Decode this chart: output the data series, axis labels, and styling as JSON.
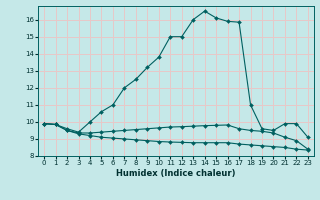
{
  "xlabel": "Humidex (Indice chaleur)",
  "xlim": [
    -0.5,
    23.5
  ],
  "ylim": [
    8,
    16.8
  ],
  "yticks": [
    8,
    9,
    10,
    11,
    12,
    13,
    14,
    15,
    16
  ],
  "xticks": [
    0,
    1,
    2,
    3,
    4,
    5,
    6,
    7,
    8,
    9,
    10,
    11,
    12,
    13,
    14,
    15,
    16,
    17,
    18,
    19,
    20,
    21,
    22,
    23
  ],
  "bg_color": "#c5e8e8",
  "grid_color": "#e8c8c8",
  "line_color": "#006060",
  "line1_x": [
    0,
    1,
    2,
    3,
    4,
    5,
    6,
    7,
    8,
    9,
    10,
    11,
    12,
    13,
    14,
    15,
    16,
    17,
    18,
    19,
    20,
    21,
    22,
    23
  ],
  "line1_y": [
    9.9,
    9.85,
    9.6,
    9.4,
    10.0,
    10.6,
    11.0,
    12.0,
    12.5,
    13.2,
    13.8,
    15.0,
    15.0,
    16.0,
    16.5,
    16.1,
    15.9,
    15.85,
    11.0,
    9.6,
    9.5,
    9.9,
    9.9,
    9.1
  ],
  "line2_x": [
    0,
    1,
    2,
    3,
    4,
    5,
    6,
    7,
    8,
    9,
    10,
    11,
    12,
    13,
    14,
    15,
    16,
    17,
    18,
    19,
    20,
    21,
    22,
    23
  ],
  "line2_y": [
    9.9,
    9.85,
    9.5,
    9.35,
    9.35,
    9.4,
    9.45,
    9.5,
    9.55,
    9.6,
    9.65,
    9.7,
    9.72,
    9.75,
    9.78,
    9.8,
    9.82,
    9.6,
    9.5,
    9.45,
    9.35,
    9.1,
    8.9,
    8.4
  ],
  "line3_x": [
    0,
    1,
    2,
    3,
    4,
    5,
    6,
    7,
    8,
    9,
    10,
    11,
    12,
    13,
    14,
    15,
    16,
    17,
    18,
    19,
    20,
    21,
    22,
    23
  ],
  "line3_y": [
    9.9,
    9.85,
    9.5,
    9.3,
    9.2,
    9.1,
    9.05,
    9.0,
    8.95,
    8.9,
    8.85,
    8.82,
    8.8,
    8.78,
    8.78,
    8.78,
    8.78,
    8.7,
    8.65,
    8.6,
    8.55,
    8.5,
    8.4,
    8.35
  ]
}
